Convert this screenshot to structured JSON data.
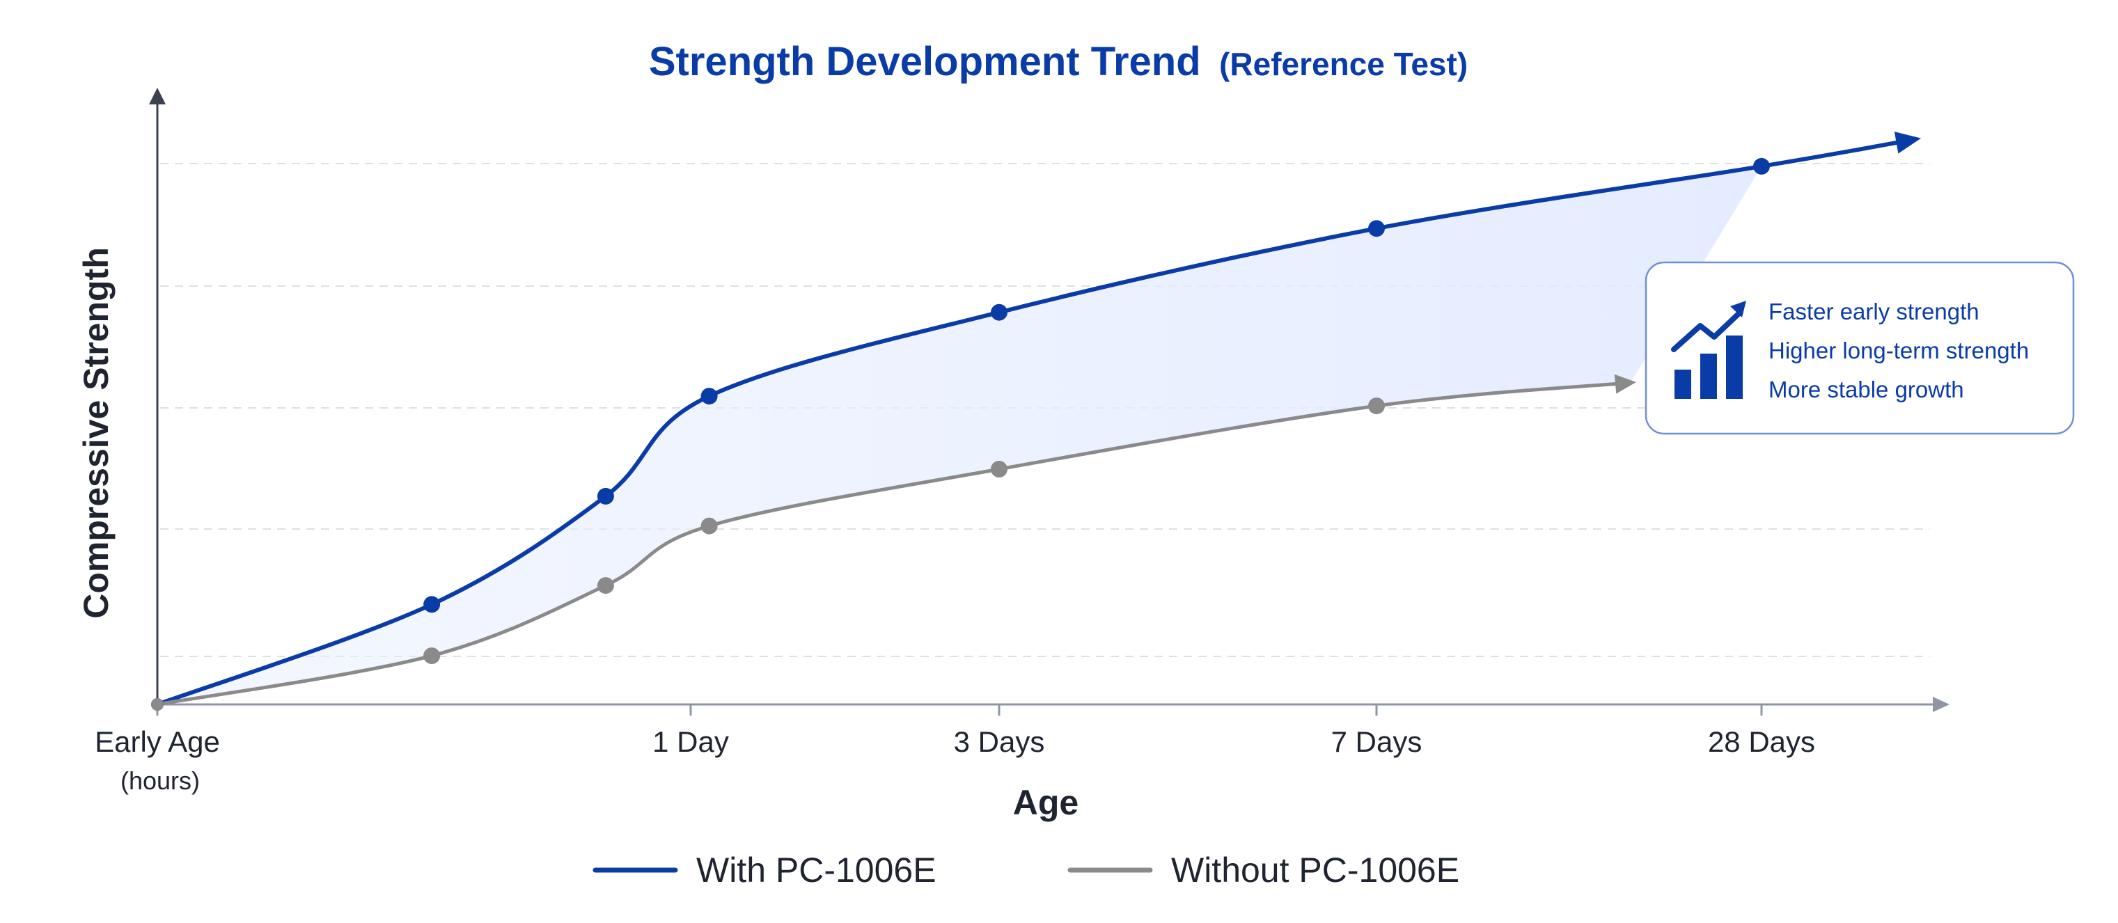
{
  "chart_data": {
    "type": "line",
    "title": "Strength Development Trend",
    "subtitle": "(Reference Test)",
    "xlabel": "Age",
    "ylabel": "Compressive Strength",
    "x_ticks": [
      {
        "label": "Early Age",
        "sublabel": "(hours)"
      },
      {
        "label": "1 Day",
        "sublabel": ""
      },
      {
        "label": "3 Days",
        "sublabel": ""
      },
      {
        "label": "7 Days",
        "sublabel": ""
      },
      {
        "label": "28 Days",
        "sublabel": ""
      }
    ],
    "grid": true,
    "legend_position": "bottom-center",
    "series": [
      {
        "name": "With PC-1006E",
        "color": "#0a3ca8",
        "points": [
          [
            0,
            0
          ],
          [
            0.33,
            0.185
          ],
          [
            0.78,
            0.385
          ],
          [
            1.06,
            0.57
          ],
          [
            2.0,
            0.725
          ],
          [
            3.0,
            0.88
          ],
          [
            4.0,
            0.995
          ],
          [
            4.4,
            1.045
          ]
        ]
      },
      {
        "name": "Without PC-1006E",
        "color": "#8a8a8a",
        "points": [
          [
            0,
            0
          ],
          [
            0.33,
            0.09
          ],
          [
            0.78,
            0.22
          ],
          [
            1.06,
            0.33
          ],
          [
            2.0,
            0.435
          ],
          [
            3.0,
            0.552
          ],
          [
            3.66,
            0.595
          ]
        ]
      }
    ],
    "callout": {
      "icon": "growth-chart-icon",
      "items": [
        "Faster early strength",
        "Higher long-term strength",
        "More stable growth"
      ]
    }
  }
}
